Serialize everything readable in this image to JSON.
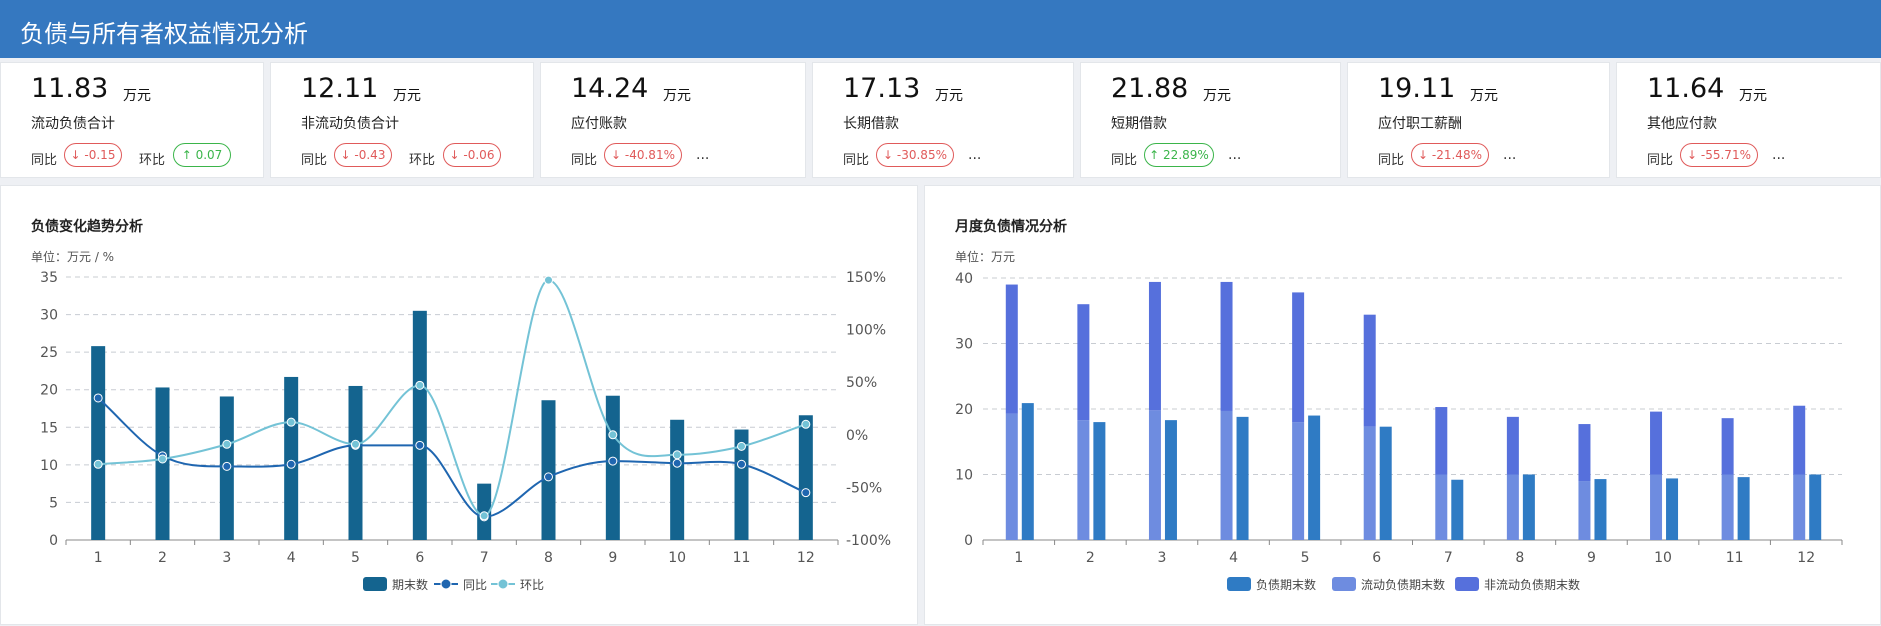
{
  "header": {
    "title": "负债与所有者权益情况分析"
  },
  "cards": [
    {
      "value": "11.83",
      "unit": "万元",
      "label": "流动负债合计",
      "yoy_label": "同比",
      "yoy": "-0.15",
      "yoy_dir": "down",
      "mom_label": "环比",
      "mom": "0.07",
      "mom_dir": "up"
    },
    {
      "value": "12.11",
      "unit": "万元",
      "label": "非流动负债合计",
      "yoy_label": "同比",
      "yoy": "-0.43",
      "yoy_dir": "down",
      "mom_label": "环比",
      "mom": "-0.06",
      "mom_dir": "down"
    },
    {
      "value": "14.24",
      "unit": "万元",
      "label": "应付账款",
      "yoy_label": "同比",
      "yoy": "-40.81%",
      "yoy_dir": "down",
      "more": "..."
    },
    {
      "value": "17.13",
      "unit": "万元",
      "label": "长期借款",
      "yoy_label": "同比",
      "yoy": "-30.85%",
      "yoy_dir": "down",
      "more": "..."
    },
    {
      "value": "21.88",
      "unit": "万元",
      "label": "短期借款",
      "yoy_label": "同比",
      "yoy": "22.89%",
      "yoy_dir": "up",
      "more": "..."
    },
    {
      "value": "19.11",
      "unit": "万元",
      "label": "应付职工薪酬",
      "yoy_label": "同比",
      "yoy": "-21.48%",
      "yoy_dir": "down",
      "more": "..."
    },
    {
      "value": "11.64",
      "unit": "万元",
      "label": "其他应付款",
      "yoy_label": "同比",
      "yoy": "-55.71%",
      "yoy_dir": "down",
      "more": "..."
    }
  ],
  "chart_data": [
    {
      "type": "bar",
      "title": "负债变化趋势分析",
      "unit_label": "单位：万元 / %",
      "categories": [
        "1",
        "2",
        "3",
        "4",
        "5",
        "6",
        "7",
        "8",
        "9",
        "10",
        "11",
        "12"
      ],
      "ylim": [
        0,
        35
      ],
      "yticks": [
        0,
        5,
        10,
        15,
        20,
        25,
        30,
        35
      ],
      "y2lim": [
        -100,
        150
      ],
      "y2ticks": [
        -100,
        -50,
        0,
        50,
        100,
        150
      ],
      "y2_suffix": "%",
      "grid": true,
      "legend_position": "bottom",
      "series": [
        {
          "name": "期末数",
          "type": "bar",
          "axis": "left",
          "color": "#14648f",
          "values": [
            25.8,
            20.3,
            19.1,
            21.7,
            20.5,
            30.5,
            7.5,
            18.6,
            19.2,
            16.0,
            14.7,
            16.6
          ]
        },
        {
          "name": "同比",
          "type": "line",
          "axis": "right",
          "color": "#1f66b0",
          "values": [
            35,
            -20,
            -30,
            -28,
            -10,
            -10,
            -78,
            -40,
            -25,
            -27,
            -28,
            -55
          ]
        },
        {
          "name": "环比",
          "type": "line",
          "axis": "right",
          "color": "#74c3d6",
          "values": [
            -28,
            -23,
            -9,
            12,
            -9,
            47,
            -77,
            147,
            0,
            -19,
            -11,
            10
          ]
        }
      ]
    },
    {
      "type": "bar",
      "title": "月度负债情况分析",
      "unit_label": "单位：万元",
      "categories": [
        "1",
        "2",
        "3",
        "4",
        "5",
        "6",
        "7",
        "8",
        "9",
        "10",
        "11",
        "12"
      ],
      "ylim": [
        0,
        40
      ],
      "yticks": [
        0,
        10,
        20,
        30,
        40
      ],
      "grid": true,
      "legend_position": "bottom",
      "series": [
        {
          "name": "负债期末数",
          "type": "bar",
          "color": "#2f7bc4",
          "values": [
            20.9,
            18.0,
            18.3,
            18.8,
            19.0,
            17.3,
            9.2,
            10.0,
            9.3,
            9.4,
            9.6,
            10.0
          ]
        },
        {
          "name": "流动负债期末数",
          "type": "bar",
          "stack": "total",
          "color": "#6e8ce0",
          "values": [
            19.3,
            18.3,
            19.8,
            19.7,
            18.0,
            17.3,
            10.0,
            10.0,
            9.0,
            10.0,
            10.0,
            10.0
          ]
        },
        {
          "name": "非流动负债期末数",
          "type": "bar",
          "stack": "total",
          "color": "#5670dc",
          "values": [
            19.7,
            17.7,
            19.6,
            19.7,
            19.8,
            17.1,
            10.3,
            8.8,
            8.7,
            9.6,
            8.6,
            10.5
          ]
        }
      ]
    }
  ]
}
